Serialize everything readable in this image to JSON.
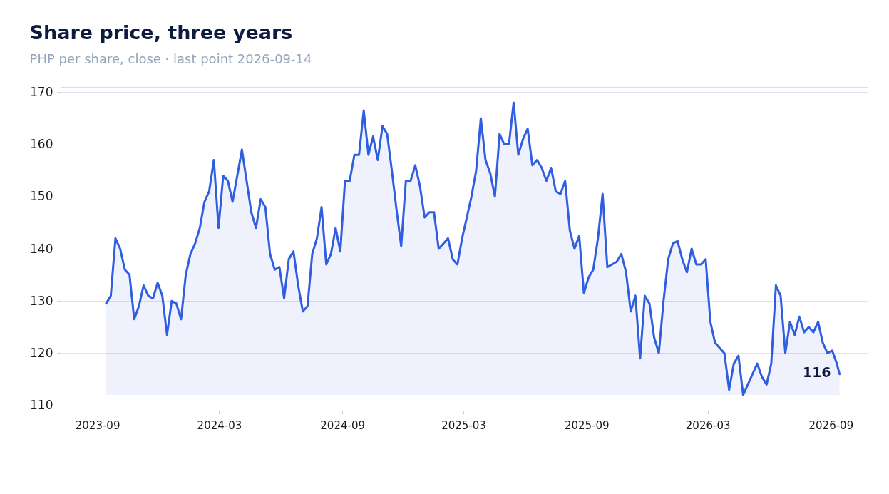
{
  "chart_data": {
    "type": "area",
    "title": "Share price, three years",
    "subtitle": "PHP per share, close · last point 2026-09-14",
    "x": [
      "2023-09-14",
      "2023-09-21",
      "2023-09-28",
      "2023-10-05",
      "2023-10-12",
      "2023-10-19",
      "2023-10-26",
      "2023-11-02",
      "2023-11-09",
      "2023-11-16",
      "2023-11-23",
      "2023-11-30",
      "2023-12-07",
      "2023-12-14",
      "2023-12-21",
      "2023-12-28",
      "2024-01-04",
      "2024-01-11",
      "2024-01-18",
      "2024-01-25",
      "2024-02-01",
      "2024-02-08",
      "2024-02-15",
      "2024-02-22",
      "2024-02-29",
      "2024-03-07",
      "2024-03-14",
      "2024-03-21",
      "2024-03-28",
      "2024-04-04",
      "2024-04-11",
      "2024-04-18",
      "2024-04-25",
      "2024-05-02",
      "2024-05-09",
      "2024-05-16",
      "2024-05-23",
      "2024-05-30",
      "2024-06-06",
      "2024-06-13",
      "2024-06-20",
      "2024-06-27",
      "2024-07-04",
      "2024-07-11",
      "2024-07-18",
      "2024-07-25",
      "2024-08-01",
      "2024-08-08",
      "2024-08-15",
      "2024-08-22",
      "2024-08-29",
      "2024-09-05",
      "2024-09-12",
      "2024-09-19",
      "2024-09-26",
      "2024-10-03",
      "2024-10-10",
      "2024-10-17",
      "2024-10-24",
      "2024-10-31",
      "2024-11-07",
      "2024-11-14",
      "2024-11-21",
      "2024-11-28",
      "2024-12-05",
      "2024-12-12",
      "2024-12-19",
      "2024-12-26",
      "2025-01-02",
      "2025-01-09",
      "2025-01-16",
      "2025-01-23",
      "2025-01-30",
      "2025-02-06",
      "2025-02-13",
      "2025-02-20",
      "2025-02-27",
      "2025-03-06",
      "2025-03-13",
      "2025-03-20",
      "2025-03-27",
      "2025-04-03",
      "2025-04-10",
      "2025-04-17",
      "2025-04-24",
      "2025-05-01",
      "2025-05-08",
      "2025-05-15",
      "2025-05-22",
      "2025-05-29",
      "2025-06-05",
      "2025-06-12",
      "2025-06-19",
      "2025-06-26",
      "2025-07-03",
      "2025-07-10",
      "2025-07-17",
      "2025-07-24",
      "2025-07-31",
      "2025-08-07",
      "2025-08-14",
      "2025-08-21",
      "2025-08-28",
      "2025-09-04",
      "2025-09-11",
      "2025-09-18",
      "2025-09-25",
      "2025-10-02",
      "2025-10-09",
      "2025-10-16",
      "2025-10-23",
      "2025-10-30",
      "2025-11-06",
      "2025-11-13",
      "2025-11-20",
      "2025-11-27",
      "2025-12-04",
      "2025-12-11",
      "2025-12-18",
      "2025-12-25",
      "2026-01-01",
      "2026-01-08",
      "2026-01-15",
      "2026-01-22",
      "2026-01-29",
      "2026-02-05",
      "2026-02-12",
      "2026-02-19",
      "2026-02-26",
      "2026-03-05",
      "2026-03-12",
      "2026-03-19",
      "2026-03-26",
      "2026-04-02",
      "2026-04-09",
      "2026-04-16",
      "2026-04-23",
      "2026-04-30",
      "2026-05-07",
      "2026-05-14",
      "2026-05-21",
      "2026-05-28",
      "2026-06-04",
      "2026-06-11",
      "2026-06-18",
      "2026-06-25",
      "2026-07-02",
      "2026-07-09",
      "2026-07-16",
      "2026-07-23",
      "2026-07-30",
      "2026-08-06",
      "2026-08-13",
      "2026-08-20",
      "2026-08-27",
      "2026-09-03",
      "2026-09-10",
      "2026-09-14"
    ],
    "series": [
      {
        "color": "#2f5fe0",
        "values": [
          129.5,
          131,
          142,
          140,
          136,
          135,
          126.5,
          129,
          133,
          131,
          130.5,
          133.5,
          131,
          123.5,
          130,
          129.5,
          126.5,
          135,
          139,
          141,
          144,
          149,
          151,
          157,
          144,
          154,
          153,
          149,
          154,
          159,
          153,
          147,
          144,
          149.5,
          148,
          139,
          136,
          136.5,
          130.5,
          138,
          139.5,
          133,
          128,
          129,
          139,
          142,
          148,
          137,
          139,
          144,
          139.5,
          153,
          153,
          158,
          158,
          166.5,
          158,
          161.5,
          157,
          163.5,
          162,
          155,
          147.5,
          140.5,
          153,
          153,
          156,
          152,
          146,
          147,
          147,
          140,
          141,
          142,
          138,
          137,
          142,
          146,
          150,
          155,
          165,
          157,
          154.5,
          150,
          162,
          160,
          160,
          168,
          158,
          161,
          163,
          156,
          157,
          155.5,
          153,
          155.5,
          151,
          150.5,
          153,
          143.5,
          140,
          142.5,
          131.5,
          134.5,
          136,
          142,
          150.5,
          136.5,
          137,
          137.5,
          139,
          135.5,
          128,
          131,
          119,
          131,
          129.5,
          123,
          120,
          130,
          138,
          141,
          141.5,
          138,
          135.5,
          140,
          137,
          137,
          138,
          126,
          122,
          121,
          120,
          113,
          118,
          119.5,
          112,
          114,
          116,
          118,
          115.5,
          114,
          118,
          133,
          131,
          120,
          126,
          123.5,
          127,
          124,
          125,
          124,
          126,
          122,
          120,
          120.5,
          118,
          116
        ]
      }
    ],
    "xlim": [
      "2023-07-08",
      "2026-10-26"
    ],
    "xticks": [
      {
        "value": "2023-09-01",
        "label": "2023-09"
      },
      {
        "value": "2024-03-01",
        "label": "2024-03"
      },
      {
        "value": "2024-09-01",
        "label": "2024-09"
      },
      {
        "value": "2025-03-01",
        "label": "2025-03"
      },
      {
        "value": "2025-09-01",
        "label": "2025-09"
      },
      {
        "value": "2026-03-01",
        "label": "2026-03"
      },
      {
        "value": "2026-09-01",
        "label": "2026-09"
      }
    ],
    "ylim": [
      109,
      171
    ],
    "yticks": [
      110,
      120,
      130,
      140,
      150,
      160,
      170
    ],
    "grid": "y",
    "annotations": [
      {
        "text": "116",
        "x": "2026-09-14",
        "y": 116
      }
    ]
  }
}
